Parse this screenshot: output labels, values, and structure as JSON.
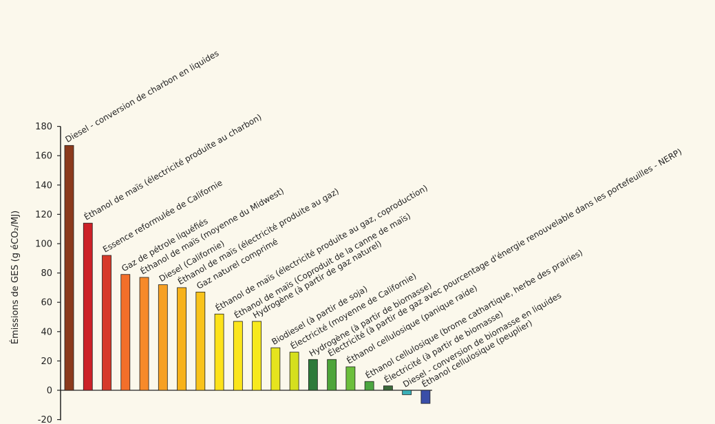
{
  "chart_data": {
    "type": "bar",
    "ylabel": "Émissions de GES (g éCO₂/MJ)",
    "ylim": [
      -20,
      180
    ],
    "yticks": [
      -20,
      0,
      20,
      40,
      60,
      80,
      100,
      120,
      140,
      160,
      180
    ],
    "grid": false,
    "categories": [
      "Diesel - conversion de charbon en liquides",
      "Éthanol de maïs (électricité produite au charbon)",
      "Essence reformulée de Californie",
      "Gaz de pétrole liquéfiés",
      "Éthanol de maïs (moyenne du Midwest)",
      "Diesel (Californie)",
      "Éthanol de maïs (électricité produite au gaz)",
      "Gaz naturel comprimé",
      "Éthanol de maïs (électricité produite au gaz, coproduction)",
      "Éthanol de maïs (Coproduit de la canne de maïs)",
      "Hydrogène (à partir de gaz naturel)",
      "Biodiesel (à partir de soja)",
      "Électricité (moyenne de Californie)",
      "Hydrogène (à partir de biomasse)",
      "Électricité (à partir de gaz avec pourcentage d'énergie renouvelable dans les portefeuilles - NERP)",
      "Éthanol cellulosique (panique raide)",
      "Éthanol cellulosique (brome cathartique, herbe des prairies)",
      "Électricité (à partir de biomasse)",
      "Diesel - conversion de biomasse en liquides",
      "Éthanol cellulosique (peuplier)"
    ],
    "values": [
      167,
      114,
      92,
      79,
      77,
      72,
      70,
      67,
      52,
      47,
      47,
      29,
      26,
      21,
      21,
      16,
      6,
      3,
      -3,
      -9
    ],
    "colors": [
      "#8b3a1c",
      "#cc2128",
      "#d63a2a",
      "#f36f2a",
      "#f78a2a",
      "#f6a024",
      "#f7b21a",
      "#f9c31a",
      "#fde21a",
      "#fbe51c",
      "#f7e91e",
      "#e6e41e",
      "#d5df1e",
      "#2d7a3a",
      "#4ea53a",
      "#6cbf3c",
      "#4ca640",
      "#3b6a3a",
      "#3ab0b8",
      "#3a4ea8"
    ]
  }
}
